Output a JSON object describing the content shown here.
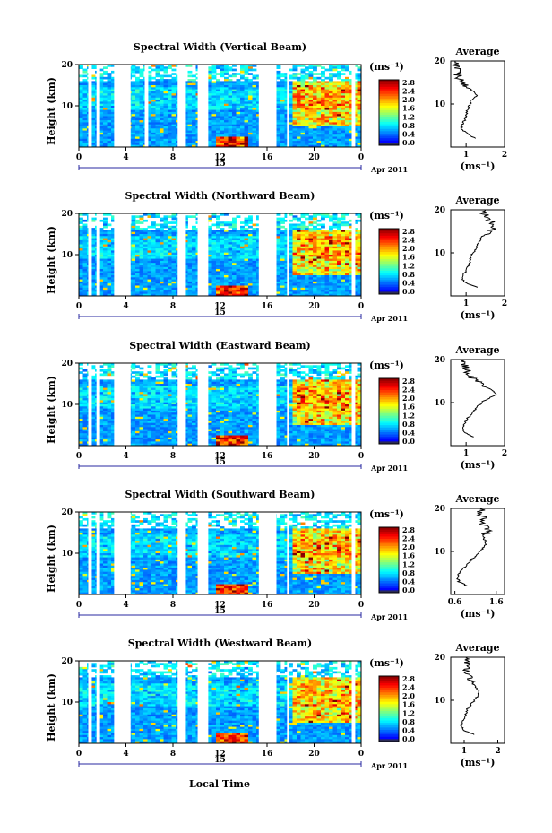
{
  "figure": {
    "xlabel": "Local Time",
    "date_label": "Apr 2011",
    "day_label": "15",
    "ylabel": "Height (km)",
    "avg_title": "Average",
    "units": "(ms⁻¹)"
  },
  "chart_data": [
    {
      "type": "heatmap",
      "title": "Spectral Width (Vertical Beam)",
      "x_ticks": [
        "0",
        "4",
        "8",
        "12",
        "16",
        "20",
        "0"
      ],
      "y_ticks": [
        "20",
        "10"
      ],
      "xlim": [
        0,
        24
      ],
      "ylim": [
        0,
        20
      ],
      "colorbar": {
        "label": "(ms⁻¹)",
        "ticks": [
          "2.8",
          "2.4",
          "2.0",
          "1.6",
          "1.2",
          "0.8",
          "0.4",
          "0.0"
        ],
        "range": [
          0,
          2.8
        ]
      },
      "gaps_hours": [
        [
          0.8,
          1.1
        ],
        [
          1.5,
          1.8
        ],
        [
          3.0,
          4.4
        ],
        [
          5.6,
          5.9
        ],
        [
          8.4,
          9.1
        ],
        [
          10.1,
          11.0
        ],
        [
          15.3,
          16.8
        ],
        [
          17.7,
          17.9
        ],
        [
          23.2,
          23.5
        ]
      ],
      "average": {
        "xlabel": "(ms⁻¹)",
        "x_ticks": [
          "1",
          "2"
        ],
        "xlim": [
          0.6,
          2.0
        ],
        "y_ticks": [
          "20",
          "10"
        ],
        "height_km": [
          2,
          3,
          4,
          5,
          6,
          7,
          8,
          9,
          10,
          11,
          12,
          13,
          14,
          15,
          16,
          17,
          18,
          19,
          20
        ],
        "values": [
          1.25,
          1.05,
          0.9,
          0.88,
          0.95,
          1.0,
          1.02,
          1.05,
          1.1,
          1.15,
          1.3,
          1.2,
          1.0,
          0.9,
          0.8,
          0.78,
          0.75,
          0.72,
          0.7
        ]
      }
    },
    {
      "type": "heatmap",
      "title": "Spectral Width (Northward Beam)",
      "x_ticks": [
        "0",
        "4",
        "8",
        "12",
        "16",
        "20",
        "0"
      ],
      "y_ticks": [
        "20",
        "10"
      ],
      "xlim": [
        0,
        24
      ],
      "ylim": [
        0,
        20
      ],
      "colorbar": {
        "label": "(ms⁻¹)",
        "ticks": [
          "2.8",
          "2.4",
          "2.0",
          "1.6",
          "1.2",
          "0.8",
          "0.4",
          "0.0"
        ],
        "range": [
          0,
          2.8
        ]
      },
      "gaps_hours": [
        [
          0.8,
          1.1
        ],
        [
          1.5,
          1.8
        ],
        [
          3.0,
          4.4
        ],
        [
          8.4,
          9.1
        ],
        [
          10.1,
          11.0
        ],
        [
          15.3,
          16.8
        ],
        [
          17.7,
          17.9
        ],
        [
          23.2,
          23.5
        ]
      ],
      "average": {
        "xlabel": "(ms⁻¹)",
        "x_ticks": [
          "1",
          "2"
        ],
        "xlim": [
          0.6,
          2.0
        ],
        "y_ticks": [
          "20",
          "10"
        ],
        "height_km": [
          2,
          3,
          4,
          5,
          6,
          7,
          8,
          9,
          10,
          11,
          12,
          13,
          14,
          15,
          16,
          17,
          18,
          19,
          20
        ],
        "values": [
          1.3,
          1.0,
          0.9,
          0.95,
          1.0,
          1.05,
          1.1,
          1.1,
          1.2,
          1.25,
          1.3,
          1.35,
          1.45,
          1.6,
          1.75,
          1.65,
          1.6,
          1.45,
          1.5
        ]
      }
    },
    {
      "type": "heatmap",
      "title": "Spectral Width (Eastward Beam)",
      "x_ticks": [
        "0",
        "4",
        "8",
        "12",
        "16",
        "20",
        "0"
      ],
      "y_ticks": [
        "20",
        "10"
      ],
      "xlim": [
        0,
        24
      ],
      "ylim": [
        0,
        20
      ],
      "colorbar": {
        "label": "(ms⁻¹)",
        "ticks": [
          "2.8",
          "2.4",
          "2.0",
          "1.6",
          "1.2",
          "0.8",
          "0.4",
          "0.0"
        ],
        "range": [
          0,
          2.8
        ]
      },
      "gaps_hours": [
        [
          0.8,
          1.1
        ],
        [
          1.5,
          1.8
        ],
        [
          3.0,
          4.4
        ],
        [
          8.4,
          9.1
        ],
        [
          10.1,
          11.0
        ],
        [
          15.3,
          16.8
        ],
        [
          17.7,
          17.9
        ],
        [
          23.2,
          23.5
        ]
      ],
      "average": {
        "xlabel": "(ms⁻¹)",
        "x_ticks": [
          "1",
          "2"
        ],
        "xlim": [
          0.6,
          2.0
        ],
        "y_ticks": [
          "20",
          "10"
        ],
        "height_km": [
          2,
          3,
          4,
          5,
          6,
          7,
          8,
          9,
          10,
          11,
          12,
          13,
          14,
          15,
          16,
          17,
          18,
          19,
          20
        ],
        "values": [
          1.2,
          0.95,
          0.9,
          0.95,
          1.0,
          1.1,
          1.2,
          1.3,
          1.4,
          1.6,
          1.8,
          1.65,
          1.4,
          1.3,
          1.1,
          1.05,
          1.0,
          0.95,
          0.95
        ]
      }
    },
    {
      "type": "heatmap",
      "title": "Spectral Width (Southward Beam)",
      "x_ticks": [
        "0",
        "4",
        "8",
        "12",
        "16",
        "20",
        "0"
      ],
      "y_ticks": [
        "20",
        "10"
      ],
      "xlim": [
        0,
        24
      ],
      "ylim": [
        0,
        20
      ],
      "colorbar": {
        "label": "(ms⁻¹)",
        "ticks": [
          "2.8",
          "2.4",
          "2.0",
          "1.6",
          "1.2",
          "0.8",
          "0.4",
          "0.0"
        ],
        "range": [
          0,
          2.8
        ]
      },
      "gaps_hours": [
        [
          0.8,
          1.1
        ],
        [
          1.5,
          1.8
        ],
        [
          3.0,
          4.4
        ],
        [
          8.4,
          9.1
        ],
        [
          10.1,
          11.0
        ],
        [
          15.3,
          16.8
        ],
        [
          17.7,
          17.9
        ],
        [
          23.2,
          23.5
        ]
      ],
      "average": {
        "xlabel": "(ms⁻¹)",
        "x_ticks": [
          "0.6",
          "1.6"
        ],
        "xlim": [
          0.5,
          1.8
        ],
        "y_ticks": [
          "20",
          "10"
        ],
        "height_km": [
          2,
          3,
          4,
          5,
          6,
          7,
          8,
          9,
          10,
          11,
          12,
          13,
          14,
          15,
          16,
          17,
          18,
          19,
          20
        ],
        "values": [
          0.9,
          0.7,
          0.65,
          0.7,
          0.8,
          0.9,
          1.0,
          1.1,
          1.2,
          1.3,
          1.35,
          1.3,
          1.3,
          1.4,
          1.3,
          1.2,
          1.3,
          1.2,
          1.25
        ]
      }
    },
    {
      "type": "heatmap",
      "title": "Spectral Width (Westward Beam)",
      "x_ticks": [
        "0",
        "4",
        "8",
        "12",
        "16",
        "20",
        "0"
      ],
      "y_ticks": [
        "20",
        "10"
      ],
      "xlim": [
        0,
        24
      ],
      "ylim": [
        0,
        20
      ],
      "colorbar": {
        "label": "(ms⁻¹)",
        "ticks": [
          "2.8",
          "2.4",
          "2.0",
          "1.6",
          "1.2",
          "0.8",
          "0.4",
          "0.0"
        ],
        "range": [
          0,
          2.8
        ]
      },
      "gaps_hours": [
        [
          0.8,
          1.1
        ],
        [
          1.5,
          1.8
        ],
        [
          3.0,
          4.4
        ],
        [
          8.4,
          9.1
        ],
        [
          10.1,
          11.0
        ],
        [
          15.3,
          16.8
        ],
        [
          17.7,
          17.9
        ],
        [
          23.2,
          23.5
        ]
      ],
      "average": {
        "xlabel": "(ms⁻¹)",
        "x_ticks": [
          "1",
          "2"
        ],
        "xlim": [
          0.6,
          2.2
        ],
        "y_ticks": [
          "20",
          "10"
        ],
        "height_km": [
          2,
          3,
          4,
          5,
          6,
          7,
          8,
          9,
          10,
          11,
          12,
          13,
          14,
          15,
          16,
          17,
          18,
          19,
          20
        ],
        "values": [
          1.3,
          1.0,
          0.9,
          0.95,
          1.0,
          1.05,
          1.1,
          1.2,
          1.3,
          1.4,
          1.45,
          1.35,
          1.25,
          1.2,
          1.1,
          1.05,
          1.1,
          1.05,
          1.1
        ]
      }
    }
  ]
}
